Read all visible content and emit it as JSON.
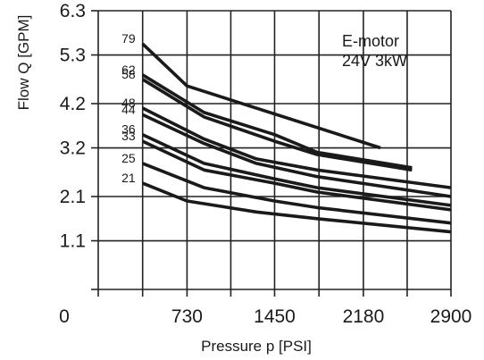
{
  "chart_data": {
    "type": "line",
    "xlabel": "Pressure p [PSI]",
    "ylabel": "Flow Q [GPM]",
    "xlim": [
      0,
      2900
    ],
    "ylim": [
      0,
      6.3
    ],
    "x_ticks": [
      "0",
      "730",
      "1450",
      "2180",
      "2900"
    ],
    "y_ticks": [
      "6.3",
      "5.3",
      "4.2",
      "3.2",
      "2.1",
      "1.1"
    ],
    "grid": true,
    "annotation": [
      "E-motor",
      "24V 3kW"
    ],
    "series": [
      {
        "name": "79",
        "points": [
          [
            365,
            5.55
          ],
          [
            730,
            4.6
          ],
          [
            2320,
            3.2
          ]
        ]
      },
      {
        "name": "62",
        "points": [
          [
            365,
            4.85
          ],
          [
            870,
            4.0
          ],
          [
            1450,
            3.5
          ],
          [
            1800,
            3.1
          ],
          [
            2580,
            2.75
          ]
        ]
      },
      {
        "name": "58",
        "points": [
          [
            365,
            4.75
          ],
          [
            870,
            3.9
          ],
          [
            1450,
            3.35
          ],
          [
            1800,
            3.05
          ],
          [
            2580,
            2.7
          ]
        ]
      },
      {
        "name": "48",
        "points": [
          [
            365,
            4.1
          ],
          [
            870,
            3.4
          ],
          [
            1300,
            2.95
          ],
          [
            1800,
            2.7
          ],
          [
            2900,
            2.3
          ]
        ]
      },
      {
        "name": "44",
        "points": [
          [
            365,
            3.95
          ],
          [
            870,
            3.3
          ],
          [
            1300,
            2.85
          ],
          [
            1800,
            2.55
          ],
          [
            2900,
            2.1
          ]
        ]
      },
      {
        "name": "36",
        "points": [
          [
            365,
            3.5
          ],
          [
            870,
            2.85
          ],
          [
            1450,
            2.5
          ],
          [
            1800,
            2.3
          ],
          [
            2900,
            1.9
          ]
        ]
      },
      {
        "name": "33",
        "points": [
          [
            365,
            3.35
          ],
          [
            870,
            2.7
          ],
          [
            1450,
            2.4
          ],
          [
            1800,
            2.2
          ],
          [
            2900,
            1.8
          ]
        ]
      },
      {
        "name": "25",
        "points": [
          [
            365,
            2.85
          ],
          [
            870,
            2.3
          ],
          [
            1450,
            2.0
          ],
          [
            1800,
            1.85
          ],
          [
            2900,
            1.5
          ]
        ]
      },
      {
        "name": "21",
        "points": [
          [
            365,
            2.4
          ],
          [
            730,
            2.0
          ],
          [
            1300,
            1.75
          ],
          [
            1800,
            1.6
          ],
          [
            2900,
            1.3
          ]
        ]
      }
    ]
  }
}
